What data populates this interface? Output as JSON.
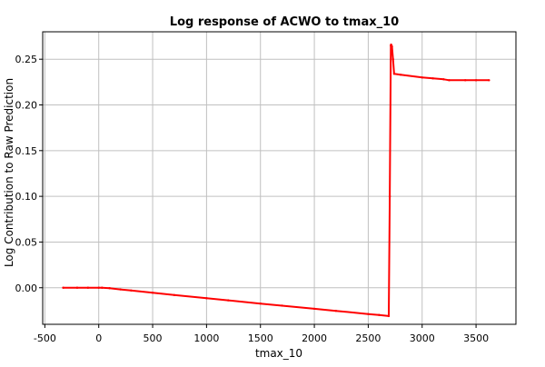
{
  "chart_data": {
    "type": "line",
    "title": "Log response of ACWO to tmax_10",
    "xlabel": "tmax_10",
    "ylabel": "Log Contribution to Raw Prediction",
    "xlim": [
      -520,
      3870
    ],
    "ylim": [
      -0.04,
      0.28
    ],
    "xticks": [
      -500,
      0,
      500,
      1000,
      1500,
      2000,
      2500,
      3000,
      3500
    ],
    "xtick_labels": [
      "-500",
      "0",
      "500",
      "1000",
      "1500",
      "2000",
      "2500",
      "3000",
      "3500"
    ],
    "yticks": [
      0.0,
      0.05,
      0.1,
      0.15,
      0.2,
      0.25
    ],
    "ytick_labels": [
      "0.00",
      "0.05",
      "0.10",
      "0.15",
      "0.20",
      "0.25"
    ],
    "grid": true,
    "series": [
      {
        "color": "#ff0000",
        "x": [
          -330,
          -200,
          -100,
          0,
          30,
          100,
          200,
          300,
          500,
          700,
          1000,
          1200,
          1500,
          1700,
          2000,
          2200,
          2500,
          2600,
          2690,
          2700,
          2710,
          2712,
          2720,
          2730,
          2740,
          2800,
          3000,
          3100,
          3200,
          3250,
          3400,
          3500,
          3620
        ],
        "y": [
          0.0,
          0.0,
          0.0,
          0.0,
          0.0,
          -0.0005,
          -0.0018,
          -0.003,
          -0.0055,
          -0.008,
          -0.0115,
          -0.0138,
          -0.0173,
          -0.0196,
          -0.023,
          -0.0253,
          -0.0288,
          -0.0298,
          -0.031,
          0.1,
          0.265,
          0.266,
          0.264,
          0.25,
          0.234,
          0.233,
          0.23,
          0.229,
          0.228,
          0.227,
          0.227,
          0.227,
          0.227
        ]
      }
    ]
  }
}
